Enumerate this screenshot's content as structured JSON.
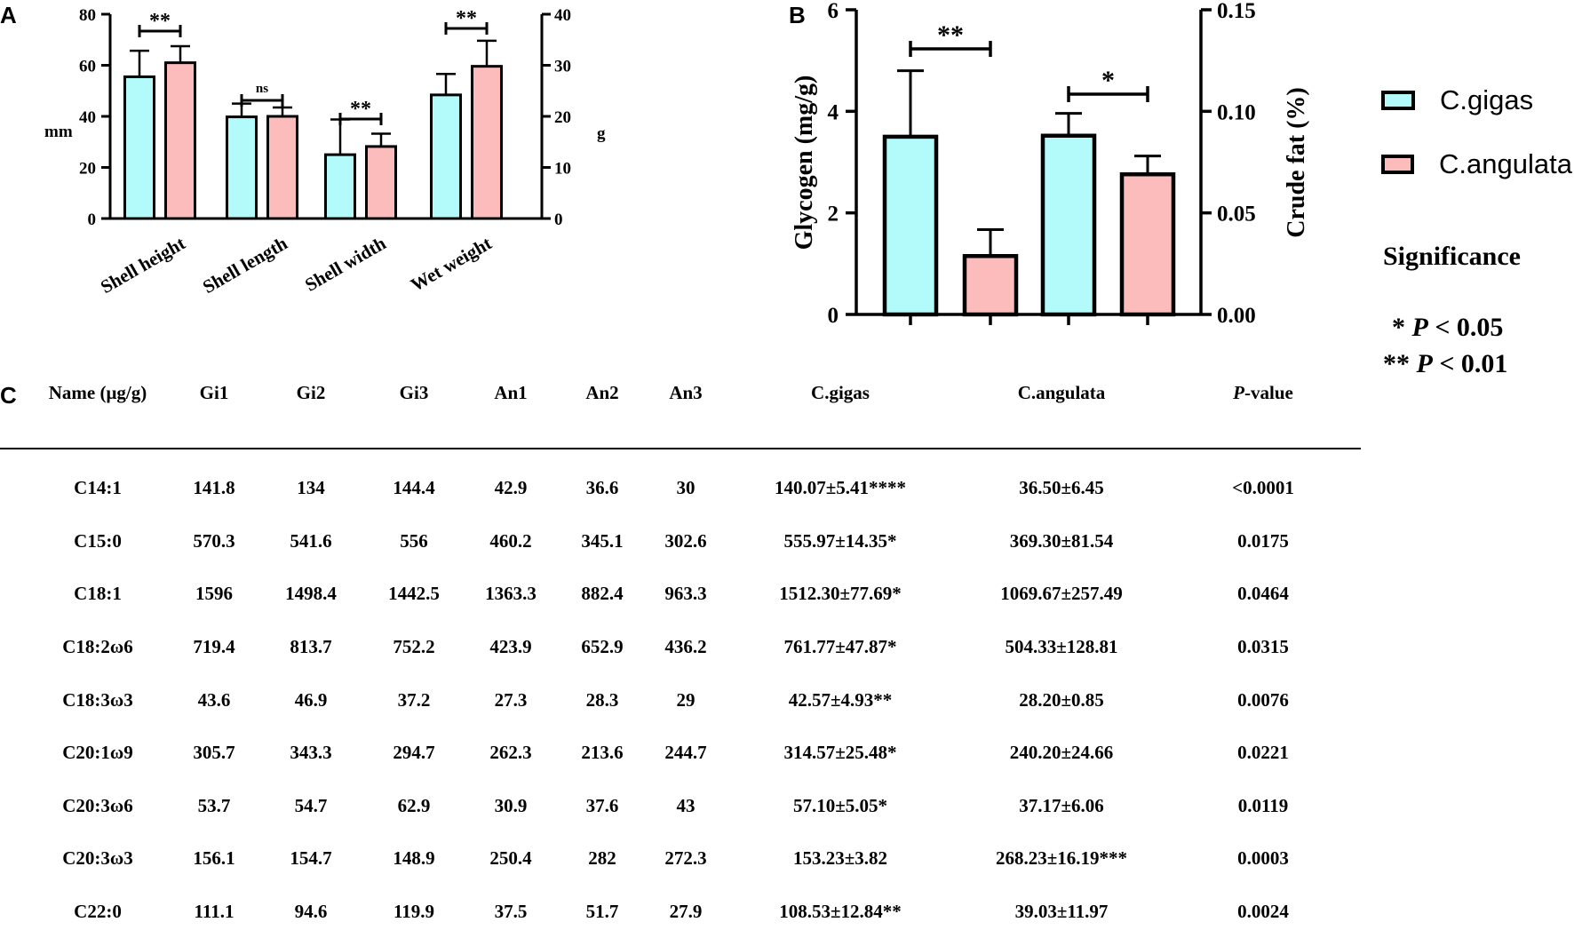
{
  "colors": {
    "cgigas": "#b3fafa",
    "cangulata": "#fcbcbc",
    "stroke": "#000000"
  },
  "panel_labels": {
    "a": "A",
    "b": "B",
    "c": "C"
  },
  "legend": {
    "items": [
      {
        "name": "C.gigas",
        "color": "#b3fafa"
      },
      {
        "name": "C.angulata",
        "color": "#fcbcbc"
      }
    ]
  },
  "significance": {
    "title": "Significance",
    "line1": {
      "stars": "*",
      "p": "P",
      "rest": " < 0.05"
    },
    "line2": {
      "stars": "**",
      "p": "P",
      "rest": " < 0.01"
    }
  },
  "chart_data": [
    {
      "id": "A",
      "type": "bar",
      "categories": [
        "Shell height",
        "Shell length",
        "Shell width",
        "Wet weight"
      ],
      "series": [
        {
          "name": "C.gigas",
          "values": [
            55.5,
            39.8,
            25,
            24.2
          ],
          "errors": [
            10.2,
            5.2,
            13.8,
            4.1
          ]
        },
        {
          "name": "C.angulata",
          "values": [
            61,
            40,
            28.2,
            29.8
          ],
          "errors": [
            6.5,
            3.5,
            5,
            5
          ]
        }
      ],
      "value_axis": [
        "left",
        "left",
        "left",
        "right"
      ],
      "ylabel_left": "mm",
      "ylabel_right": "g",
      "ylim_left": [
        0,
        80
      ],
      "ylim_right": [
        0,
        40
      ],
      "yticks_left": [
        "0",
        "20",
        "40",
        "60",
        "80"
      ],
      "yticks_right": [
        "0",
        "10",
        "20",
        "30",
        "40"
      ],
      "significance": [
        {
          "category": 0,
          "label": "**"
        },
        {
          "category": 1,
          "label": "ns"
        },
        {
          "category": 2,
          "label": "**"
        },
        {
          "category": 3,
          "label": "**"
        }
      ]
    },
    {
      "id": "B",
      "type": "bar",
      "groups": [
        "Glycogen",
        "Crude fat"
      ],
      "series": [
        {
          "name": "C.gigas",
          "values": [
            3.5,
            0.088
          ],
          "errors": [
            1.3,
            0.011
          ]
        },
        {
          "name": "C.angulata",
          "values": [
            1.15,
            0.069
          ],
          "errors": [
            0.52,
            0.009
          ]
        }
      ],
      "ylabel_left": "Glycogen (mg/g)",
      "ylabel_right": "Crude fat (%)",
      "ylim_left": [
        0,
        6
      ],
      "ylim_right": [
        0,
        0.15
      ],
      "yticks_left": [
        "0",
        "2",
        "4",
        "6"
      ],
      "yticks_right": [
        "0.00",
        "0.05",
        "0.10",
        "0.15"
      ],
      "significance": [
        {
          "group": 0,
          "label": "**"
        },
        {
          "group": 1,
          "label": "*"
        }
      ]
    },
    {
      "id": "C",
      "type": "table",
      "columns": [
        "Name (μg/g)",
        "Gi1",
        "Gi2",
        "Gi3",
        "An1",
        "An2",
        "An3",
        "C.gigas",
        "C.angulata",
        "-value"
      ],
      "pvalue_prefix": "P",
      "rows": [
        [
          "C14:1",
          "141.8",
          "134",
          "144.4",
          "42.9",
          "36.6",
          "30",
          "140.07±5.41****",
          "36.50±6.45",
          "<0.0001"
        ],
        [
          "C15:0",
          "570.3",
          "541.6",
          "556",
          "460.2",
          "345.1",
          "302.6",
          "555.97±14.35*",
          "369.30±81.54",
          "0.0175"
        ],
        [
          "C18:1",
          "1596",
          "1498.4",
          "1442.5",
          "1363.3",
          "882.4",
          "963.3",
          "1512.30±77.69*",
          "1069.67±257.49",
          "0.0464"
        ],
        [
          "C18:2ω6",
          "719.4",
          "813.7",
          "752.2",
          "423.9",
          "652.9",
          "436.2",
          "761.77±47.87*",
          "504.33±128.81",
          "0.0315"
        ],
        [
          "C18:3ω3",
          "43.6",
          "46.9",
          "37.2",
          "27.3",
          "28.3",
          "29",
          "42.57±4.93**",
          "28.20±0.85",
          "0.0076"
        ],
        [
          "C20:1ω9",
          "305.7",
          "343.3",
          "294.7",
          "262.3",
          "213.6",
          "244.7",
          "314.57±25.48*",
          "240.20±24.66",
          "0.0221"
        ],
        [
          "C20:3ω6",
          "53.7",
          "54.7",
          "62.9",
          "30.9",
          "37.6",
          "43",
          "57.10±5.05*",
          "37.17±6.06",
          "0.0119"
        ],
        [
          "C20:3ω3",
          "156.1",
          "154.7",
          "148.9",
          "250.4",
          "282",
          "272.3",
          "153.23±3.82",
          "268.23±16.19***",
          "0.0003"
        ],
        [
          "C22:0",
          "111.1",
          "94.6",
          "119.9",
          "37.5",
          "51.7",
          "27.9",
          "108.53±12.84**",
          "39.03±11.97",
          "0.0024"
        ]
      ]
    }
  ]
}
